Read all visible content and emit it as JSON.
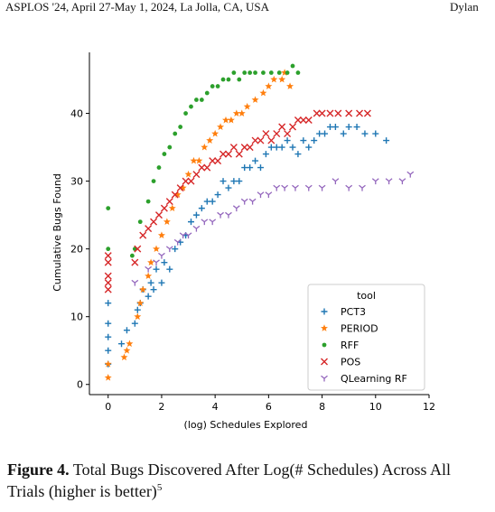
{
  "header": {
    "left": "ASPLOS '24, April 27-May 1, 2024, La Jolla, CA, USA",
    "right": "Dylan"
  },
  "caption": {
    "label": "Figure 4.",
    "text": "Total Bugs Discovered After Log(# Schedules) Across All Trials (higher is better)",
    "footnote": "5"
  },
  "chart_data": {
    "type": "scatter",
    "xlabel": "(log) Schedules Explored",
    "ylabel": "Cumulative Bugs Found",
    "xlim": [
      -0.7,
      12
    ],
    "ylim": [
      -1.5,
      49
    ],
    "xticks": [
      0,
      2,
      4,
      6,
      8,
      10,
      12
    ],
    "yticks": [
      0,
      10,
      20,
      30,
      40
    ],
    "grid": false,
    "legend": {
      "title": "tool",
      "placement": "lower-right"
    },
    "series": [
      {
        "name": "PCT3",
        "marker": "plus",
        "color": "#1f77b4",
        "x": [
          0,
          0,
          0,
          0,
          0,
          0.5,
          0.7,
          1,
          1.1,
          1.2,
          1.3,
          1.5,
          1.6,
          1.7,
          1.8,
          2,
          2.1,
          2.3,
          2.5,
          2.7,
          2.9,
          3.1,
          3.3,
          3.5,
          3.7,
          3.9,
          4.1,
          4.3,
          4.5,
          4.7,
          4.9,
          5.1,
          5.3,
          5.5,
          5.7,
          5.9,
          6.1,
          6.3,
          6.5,
          6.7,
          6.9,
          7.1,
          7.3,
          7.5,
          7.7,
          7.9,
          8.1,
          8.3,
          8.5,
          8.8,
          9,
          9.3,
          9.6,
          10,
          10.4
        ],
        "y": [
          3,
          5,
          7,
          9,
          12,
          6,
          8,
          9,
          11,
          12,
          14,
          13,
          15,
          14,
          17,
          15,
          18,
          17,
          20,
          21,
          22,
          24,
          25,
          26,
          27,
          27,
          28,
          30,
          29,
          30,
          30,
          32,
          32,
          33,
          32,
          34,
          35,
          35,
          35,
          36,
          35,
          34,
          36,
          35,
          36,
          37,
          37,
          38,
          38,
          37,
          38,
          38,
          37,
          37,
          36
        ]
      },
      {
        "name": "PERIOD",
        "marker": "star",
        "color": "#ff7f0e",
        "x": [
          0,
          0,
          0.6,
          0.7,
          0.8,
          1.1,
          1.2,
          1.3,
          1.5,
          1.6,
          1.8,
          2,
          2.2,
          2.4,
          2.6,
          2.8,
          3,
          3.2,
          3.4,
          3.6,
          3.8,
          4,
          4.2,
          4.4,
          4.6,
          4.8,
          5,
          5.2,
          5.5,
          5.8,
          6,
          6.2,
          6.5,
          6.6,
          6.8
        ],
        "y": [
          1,
          3,
          4,
          5,
          6,
          10,
          12,
          14,
          16,
          18,
          20,
          22,
          24,
          26,
          28,
          29,
          31,
          33,
          33,
          35,
          36,
          37,
          38,
          39,
          39,
          40,
          40,
          41,
          42,
          43,
          44,
          45,
          45,
          46,
          44
        ]
      },
      {
        "name": "RFF",
        "marker": "dot",
        "color": "#2ca02c",
        "x": [
          0,
          0,
          0.9,
          1,
          1.2,
          1.5,
          1.7,
          1.9,
          2.1,
          2.3,
          2.5,
          2.7,
          2.9,
          3.1,
          3.3,
          3.5,
          3.7,
          3.9,
          4.1,
          4.3,
          4.5,
          4.7,
          4.9,
          5.1,
          5.3,
          5.5,
          5.8,
          6.1,
          6.4,
          6.7,
          6.9,
          7.1
        ],
        "y": [
          20,
          26,
          19,
          20,
          24,
          27,
          30,
          32,
          34,
          35,
          37,
          38,
          40,
          41,
          42,
          42,
          43,
          44,
          44,
          45,
          45,
          46,
          45,
          46,
          46,
          46,
          46,
          46,
          46,
          46,
          47,
          46
        ]
      },
      {
        "name": "POS",
        "marker": "x",
        "color": "#d62728",
        "x": [
          0,
          0,
          0,
          0,
          0,
          1,
          1.1,
          1.3,
          1.5,
          1.7,
          1.9,
          2.1,
          2.3,
          2.5,
          2.7,
          2.9,
          3.1,
          3.3,
          3.5,
          3.7,
          3.9,
          4.1,
          4.3,
          4.5,
          4.7,
          4.9,
          5.1,
          5.3,
          5.5,
          5.7,
          5.9,
          6.1,
          6.3,
          6.5,
          6.7,
          6.9,
          7.1,
          7.3,
          7.5,
          7.8,
          8,
          8.3,
          8.6,
          9,
          9.4,
          9.7
        ],
        "y": [
          14,
          15,
          16,
          18,
          19,
          18,
          20,
          22,
          23,
          24,
          25,
          26,
          27,
          28,
          29,
          30,
          30,
          31,
          32,
          32,
          33,
          33,
          34,
          34,
          35,
          34,
          35,
          35,
          36,
          36,
          37,
          36,
          37,
          38,
          37,
          38,
          39,
          39,
          39,
          40,
          40,
          40,
          40,
          40,
          40,
          40
        ]
      },
      {
        "name": "QLearning RF",
        "marker": "tri",
        "color": "#9467bd",
        "x": [
          1,
          1.5,
          1.8,
          2,
          2.3,
          2.6,
          2.8,
          3,
          3.3,
          3.6,
          3.9,
          4.2,
          4.5,
          4.8,
          5.1,
          5.4,
          5.7,
          6,
          6.3,
          6.6,
          7,
          7.5,
          8,
          8.5,
          9,
          9.5,
          10,
          10.5,
          11,
          11.3
        ],
        "y": [
          15,
          17,
          18,
          19,
          20,
          21,
          22,
          22,
          23,
          24,
          24,
          25,
          25,
          26,
          27,
          27,
          28,
          28,
          29,
          29,
          29,
          29,
          29,
          30,
          29,
          29,
          30,
          30,
          30,
          31
        ]
      }
    ]
  }
}
